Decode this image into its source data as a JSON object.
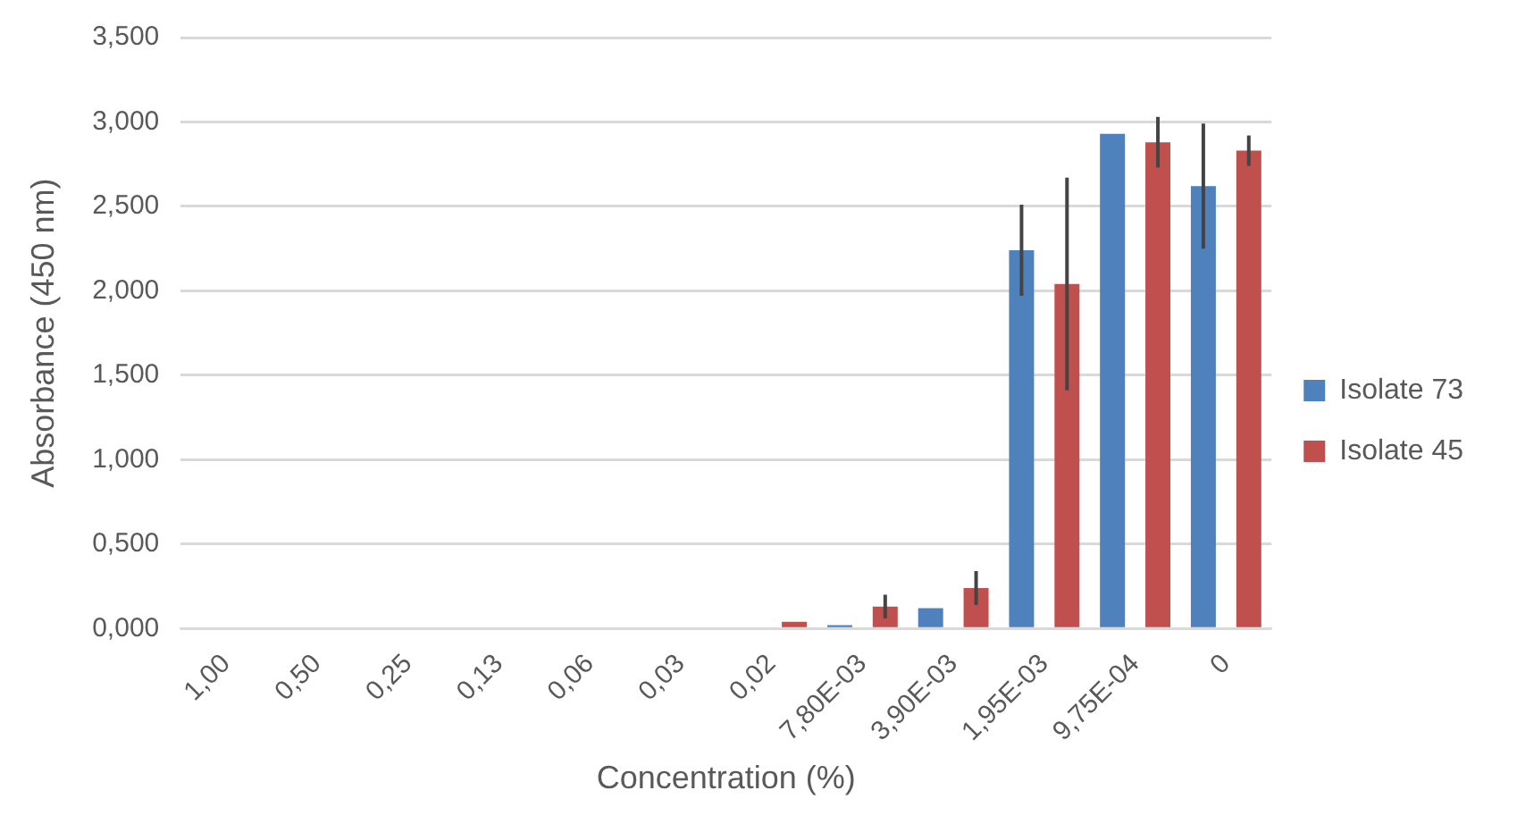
{
  "chart_data": {
    "type": "bar",
    "xlabel": "Concentration (%)",
    "ylabel": "Absorbance (450 nm)",
    "categories": [
      "1,00",
      "0,50",
      "0,25",
      "0,13",
      "0,06",
      "0,03",
      "0,02",
      "7,80E-03",
      "3,90E-03",
      "1,95E-03",
      "9,75E-04",
      "0"
    ],
    "series": [
      {
        "name": "Isolate 73",
        "color": "#4f81bd",
        "values": [
          0,
          0,
          0,
          0,
          0,
          0,
          0,
          0.02,
          0.12,
          2.24,
          2.93,
          2.62
        ],
        "errors": [
          null,
          null,
          null,
          null,
          null,
          null,
          null,
          null,
          null,
          0.27,
          null,
          0.37
        ]
      },
      {
        "name": "Isolate 45",
        "color": "#c0504d",
        "values": [
          0,
          0,
          0,
          0,
          0,
          0,
          0.04,
          0.13,
          0.24,
          2.04,
          2.88,
          2.83
        ],
        "errors": [
          null,
          null,
          null,
          null,
          null,
          null,
          null,
          0.07,
          0.1,
          0.63,
          0.15,
          0.09
        ]
      }
    ],
    "ylim": [
      0,
      3.5
    ],
    "yticks": [
      {
        "value": 0,
        "label": "0,000"
      },
      {
        "value": 0.5,
        "label": "0,500"
      },
      {
        "value": 1,
        "label": "1,000"
      },
      {
        "value": 1.5,
        "label": "1,500"
      },
      {
        "value": 2,
        "label": "2,000"
      },
      {
        "value": 2.5,
        "label": "2,500"
      },
      {
        "value": 3,
        "label": "3,000"
      },
      {
        "value": 3.5,
        "label": "3,500"
      }
    ],
    "grid": "y",
    "legend": "right"
  }
}
